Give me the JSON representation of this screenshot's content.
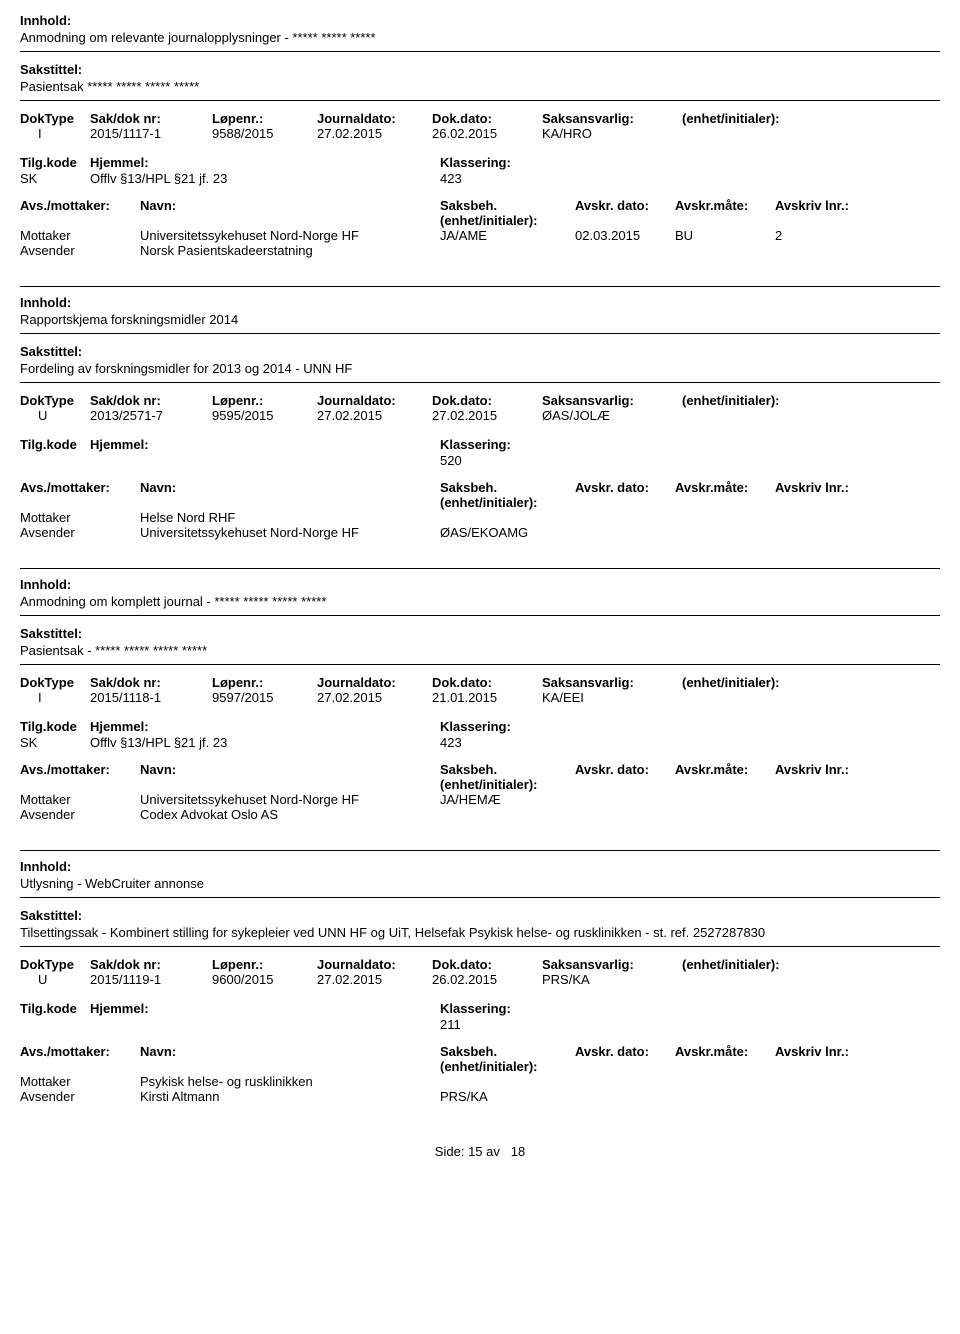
{
  "labels": {
    "innhold": "Innhold:",
    "sakstittel": "Sakstittel:",
    "doktype": "DokType",
    "saknr": "Sak/dok nr:",
    "lopenr": "Løpenr.:",
    "journaldato": "Journaldato:",
    "dokdato": "Dok.dato:",
    "saksansvarlig": "Saksansvarlig:",
    "enhet": "(enhet/initialer):",
    "tilgkode": "Tilg.kode",
    "hjemmel": "Hjemmel:",
    "klassering": "Klassering:",
    "avsmottaker": "Avs./mottaker:",
    "navn": "Navn:",
    "saksbeh": "Saksbeh.",
    "enhetinit": "(enhet/initialer):",
    "avskrdato": "Avskr. dato:",
    "avskrmate": "Avskr.måte:",
    "avskrivlnr": "Avskriv lnr.:",
    "mottaker": "Mottaker",
    "avsender": "Avsender",
    "side": "Side:",
    "av": "av"
  },
  "records": [
    {
      "innhold": "Anmodning om relevante journalopplysninger - ***** ***** *****",
      "sakstittel": "Pasientsak ***** ***** ***** *****",
      "doktype": "I",
      "saknr": "2015/1117-1",
      "lopenr": "9588/2015",
      "journaldato": "27.02.2015",
      "dokdato": "26.02.2015",
      "saksansvarlig": "KA/HRO",
      "enhet": "",
      "tilgkode": "SK",
      "hjemmel": "Offlv §13/HPL §21 jf. 23",
      "klassering": "423",
      "parties": [
        {
          "role": "Mottaker",
          "name": "Universitetssykehuset Nord-Norge HF",
          "code": "JA/AME",
          "date": "02.03.2015",
          "bu": "BU",
          "num": "2"
        },
        {
          "role": "Avsender",
          "name": "Norsk Pasientskadeerstatning",
          "code": "",
          "date": "",
          "bu": "",
          "num": ""
        }
      ],
      "showTop": false
    },
    {
      "innhold": "Rapportskjema forskningsmidler 2014",
      "sakstittel": "Fordeling av forskningsmidler for 2013 og 2014 - UNN HF",
      "doktype": "U",
      "saknr": "2013/2571-7",
      "lopenr": "9595/2015",
      "journaldato": "27.02.2015",
      "dokdato": "27.02.2015",
      "saksansvarlig": "ØAS/JOLÆ",
      "enhet": "",
      "tilgkode": "",
      "hjemmel": "",
      "klassering": "520",
      "parties": [
        {
          "role": "Mottaker",
          "name": "Helse Nord RHF",
          "code": "",
          "date": "",
          "bu": "",
          "num": ""
        },
        {
          "role": "Avsender",
          "name": "Universitetssykehuset Nord-Norge HF",
          "code": "ØAS/EKOAMG",
          "date": "",
          "bu": "",
          "num": ""
        }
      ],
      "showTop": true
    },
    {
      "innhold": "Anmodning om komplett journal - ***** ***** ***** *****",
      "sakstittel": "Pasientsak - ***** ***** ***** *****",
      "doktype": "I",
      "saknr": "2015/1118-1",
      "lopenr": "9597/2015",
      "journaldato": "27.02.2015",
      "dokdato": "21.01.2015",
      "saksansvarlig": "KA/EEI",
      "enhet": "",
      "tilgkode": "SK",
      "hjemmel": "Offlv §13/HPL §21 jf. 23",
      "klassering": "423",
      "parties": [
        {
          "role": "Mottaker",
          "name": "Universitetssykehuset Nord-Norge HF",
          "code": "JA/HEMÆ",
          "date": "",
          "bu": "",
          "num": ""
        },
        {
          "role": "Avsender",
          "name": "Codex Advokat Oslo AS",
          "code": "",
          "date": "",
          "bu": "",
          "num": ""
        }
      ],
      "showTop": true
    },
    {
      "innhold": "Utlysning - WebCruiter annonse",
      "sakstittel": "Tilsettingssak - Kombinert stilling for sykepleier ved UNN HF og UiT, Helsefak Psykisk helse- og rusklinikken - st. ref. 2527287830",
      "doktype": "U",
      "saknr": "2015/1119-1",
      "lopenr": "9600/2015",
      "journaldato": "27.02.2015",
      "dokdato": "26.02.2015",
      "saksansvarlig": "PRS/KA",
      "enhet": "",
      "tilgkode": "",
      "hjemmel": "",
      "klassering": "211",
      "parties": [
        {
          "role": "Mottaker",
          "name": "Psykisk helse- og rusklinikken",
          "code": "",
          "date": "",
          "bu": "",
          "num": ""
        },
        {
          "role": "Avsender",
          "name": "Kirsti Altmann",
          "code": "PRS/KA",
          "date": "",
          "bu": "",
          "num": ""
        }
      ],
      "showTop": true
    }
  ],
  "footer": {
    "page": "15",
    "total": "18"
  }
}
